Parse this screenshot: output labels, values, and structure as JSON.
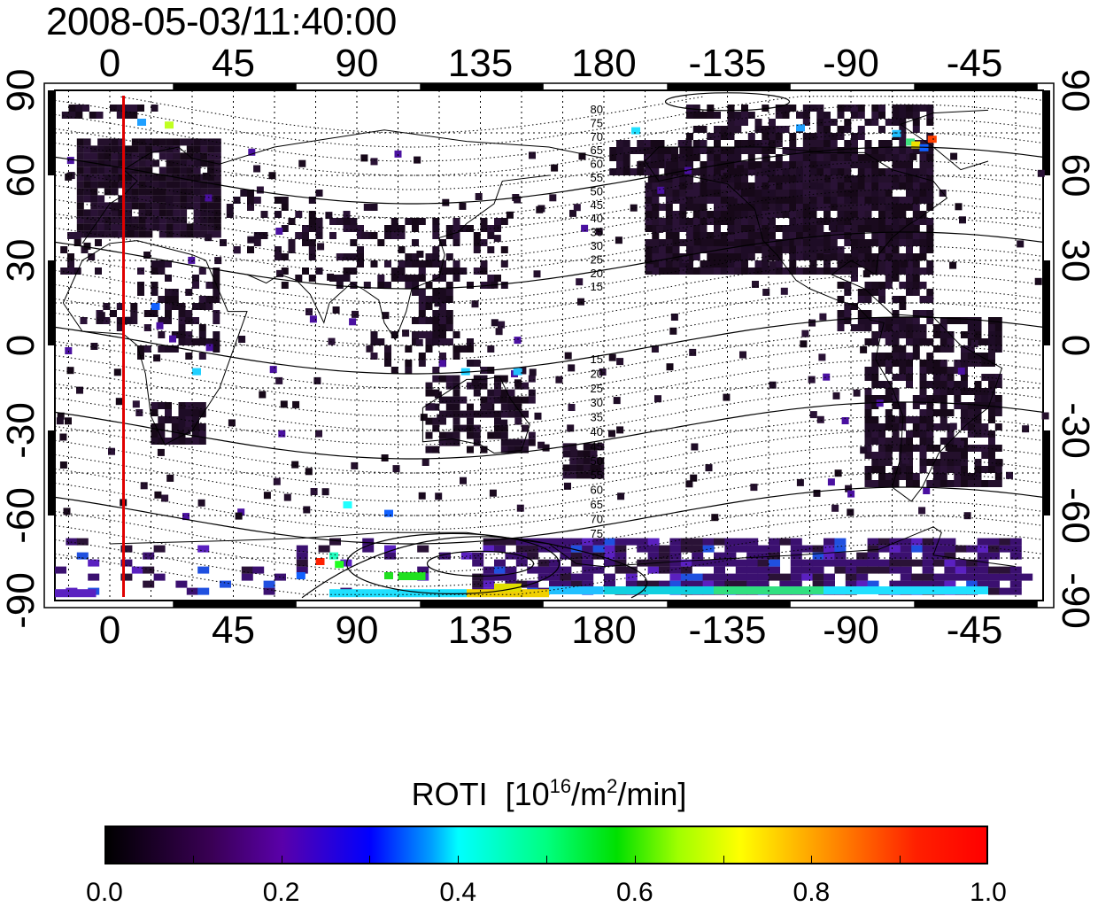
{
  "title": "2008-05-03/11:40:00",
  "map": {
    "lon_ticks": [
      "0",
      "45",
      "90",
      "135",
      "180",
      "-135",
      "-90",
      "-45"
    ],
    "lat_ticks": [
      "90",
      "60",
      "30",
      "0",
      "-30",
      "-60",
      "-90"
    ],
    "contour_labels_north": [
      "80",
      "75",
      "70",
      "65",
      "60",
      "55",
      "50",
      "45",
      "40",
      "35",
      "30",
      "25",
      "20",
      "15"
    ],
    "contour_labels_south": [
      "15",
      "20",
      "25",
      "30",
      "35",
      "40",
      "45",
      "50",
      "55",
      "60",
      "65",
      "70",
      "75"
    ],
    "terminator_longitude": 5,
    "terminator_color": "#e00000"
  },
  "colorbar": {
    "title": "ROTI",
    "unit_prefix": "[10",
    "unit_exp1": "16",
    "unit_mid": "/m",
    "unit_exp2": "2",
    "unit_suffix": "/min]",
    "ticks": [
      "0.0",
      "0.2",
      "0.4",
      "0.6",
      "0.8",
      "1.0"
    ],
    "range": [
      0.0,
      1.0
    ],
    "colors": [
      "#000000",
      "#5a00aa",
      "#0000ff",
      "#00ffff",
      "#00e000",
      "#ffff00",
      "#ff0000"
    ]
  }
}
